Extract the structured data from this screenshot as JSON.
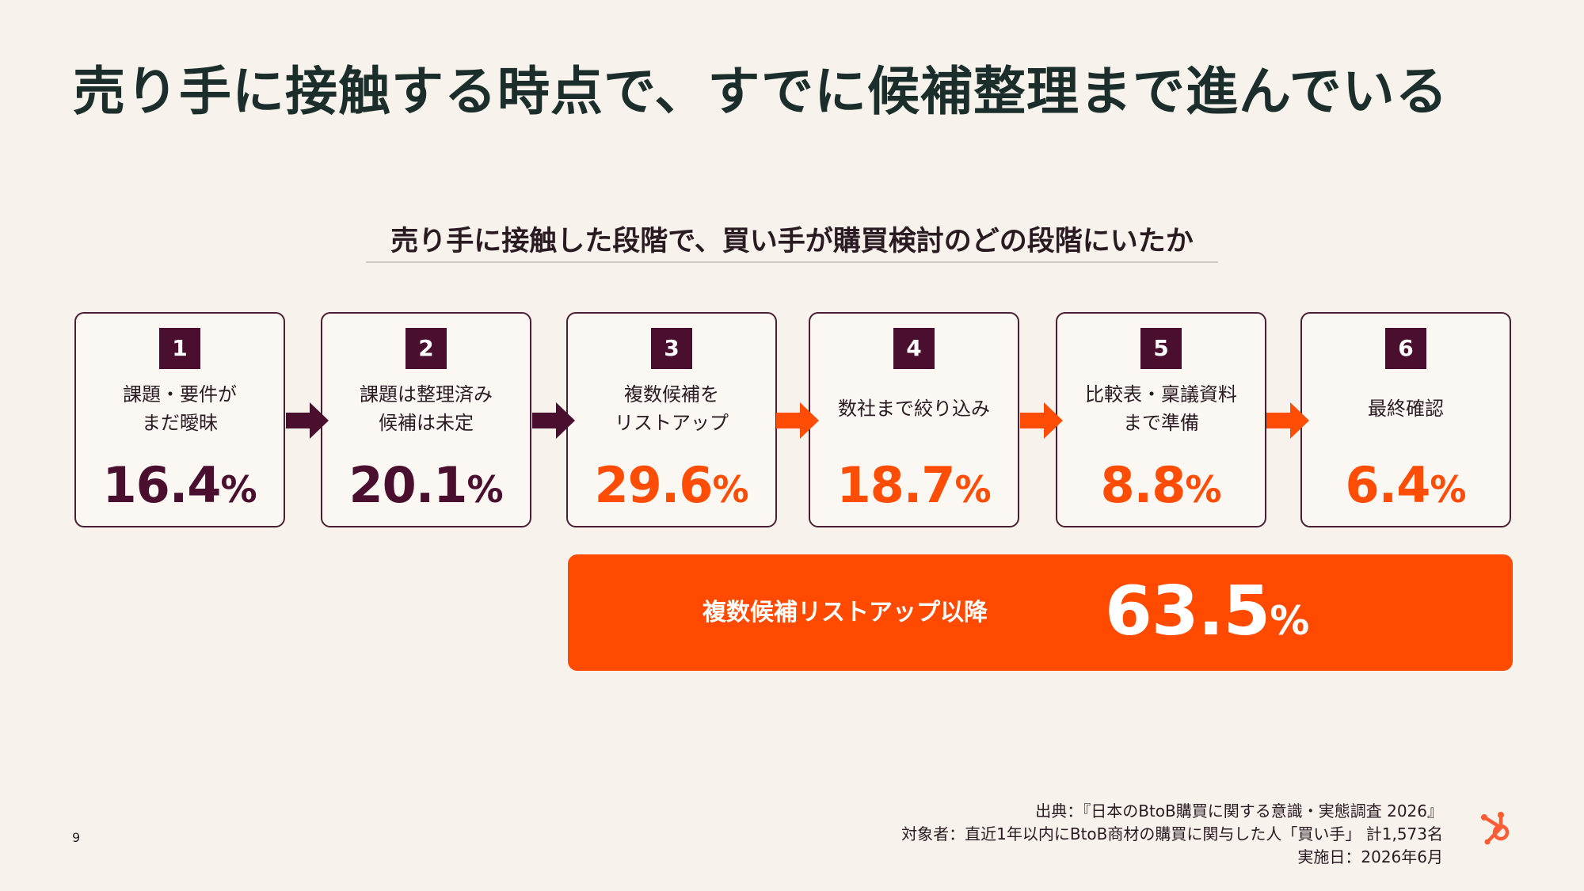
{
  "title": "売り手に接触する時点で、すでに候補整理まで進んでいる",
  "subtitle": "売り手に接触した段階で、買い手が購買検討のどの段階にいたか",
  "steps": [
    {
      "num": "1",
      "label": "課題・要件が\nまだ曖昧",
      "value": "16.4",
      "unit": "%"
    },
    {
      "num": "2",
      "label": "課題は整理済み\n候補は未定",
      "value": "20.1",
      "unit": "%"
    },
    {
      "num": "3",
      "label": "複数候補を\nリストアップ",
      "value": "29.6",
      "unit": "%"
    },
    {
      "num": "4",
      "label": "数社まで絞り込み",
      "value": "18.7",
      "unit": "%"
    },
    {
      "num": "5",
      "label": "比較表・稟議資料\nまで準備",
      "value": "8.8",
      "unit": "%"
    },
    {
      "num": "6",
      "label": "最終確認",
      "value": "6.4",
      "unit": "%"
    }
  ],
  "summary": {
    "label": "複数候補リストアップ以降",
    "value": "63.5",
    "unit": "%"
  },
  "page_number": "9",
  "source_lines": [
    "出典：『日本のBtoB購買に関する意識・実態調査 2026』",
    "対象者：直近1年以内にBtoB商材の購買に関与した人「買い手」 計1,573名",
    "実施日：2026年6月"
  ],
  "colors": {
    "dark": "#4a0f2f",
    "accent": "#ff4a00",
    "background": "#f7f3ec"
  },
  "icons": {
    "step_arrow": "arrow-right-icon",
    "logo": "hubspot-sprocket-icon"
  }
}
